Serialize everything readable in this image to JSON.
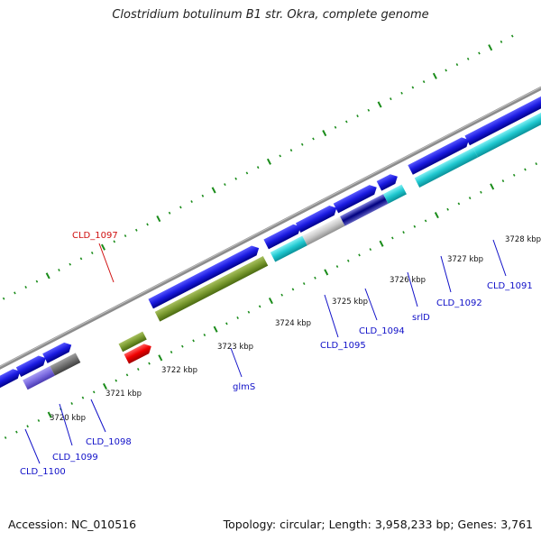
{
  "title": "Clostridium botulinum B1 str. Okra, complete genome",
  "footer": {
    "accession": "Accession: NC_010516",
    "stats": "Topology: circular; Length: 3,958,233 bp; Genes: 3,761"
  },
  "colors": {
    "backbone": "#8c8c8c",
    "tick": "#1a8c1a",
    "label_blue": "#1010c8",
    "label_red": "#d01010"
  },
  "kbp_labels": [
    "3720 kbp",
    "3721 kbp",
    "3722 kbp",
    "3723 kbp",
    "3724 kbp",
    "3725 kbp",
    "3726 kbp",
    "3727 kbp",
    "3728 kbp"
  ],
  "genes": [
    {
      "id": "CLD_1100",
      "color": "#1a1ae0",
      "strand": "plus"
    },
    {
      "id": "CLD_1099",
      "color": "#7a6ae0",
      "strand": "minus"
    },
    {
      "id": "CLD_1098",
      "color": "#777777",
      "strand": "minus"
    },
    {
      "id": "CLD_1097",
      "color": "#7a9a30",
      "strand": "plus"
    },
    {
      "id": "glmS",
      "color": "#7a9a30",
      "strand": "minus"
    },
    {
      "id": "CLD_1095",
      "color": "#20c8d0",
      "strand": "minus"
    },
    {
      "id": "CLD_1094",
      "color": "#c8c8c8",
      "strand": "minus"
    },
    {
      "id": "srlD",
      "color": "#5050c0",
      "strand": "minus"
    },
    {
      "id": "CLD_1092",
      "color": "#20c8d0",
      "strand": "minus"
    },
    {
      "id": "CLD_1091",
      "color": "#20c8d0",
      "strand": "minus"
    }
  ]
}
